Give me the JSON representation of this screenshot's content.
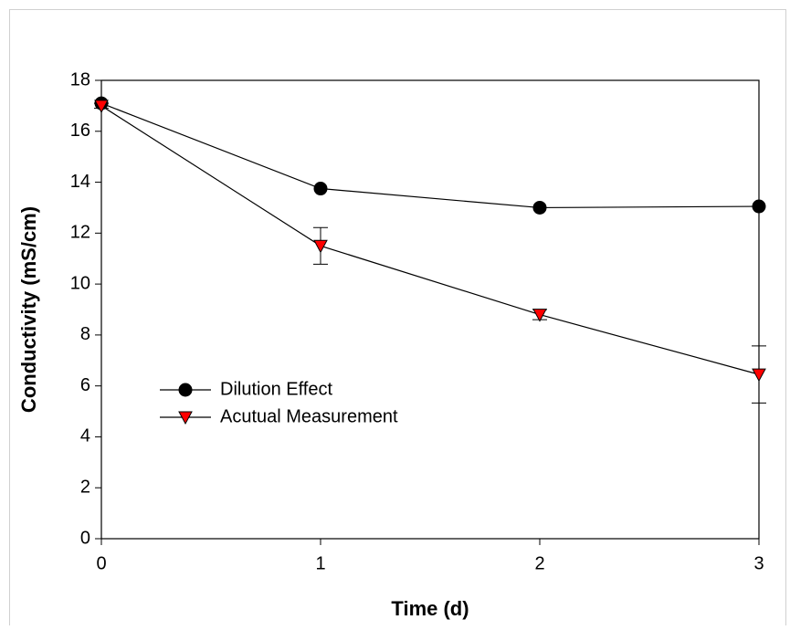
{
  "chart_data": {
    "type": "line",
    "x_label": "Time (d)",
    "y_label": "Conductivity (mS/cm)",
    "x": [
      0,
      1,
      2,
      3
    ],
    "series": [
      {
        "name": "Dilution Effect",
        "color": "#000000",
        "marker": "circle",
        "values": [
          17.1,
          13.75,
          13.0,
          13.05
        ]
      },
      {
        "name": "Acutual Measurement",
        "color": "#ff0000",
        "marker": "triangle-down",
        "values": [
          17.0,
          11.5,
          8.8,
          6.45
        ],
        "errors": [
          0.1,
          0.72,
          0.2,
          1.12
        ]
      }
    ],
    "xlim": [
      0,
      3
    ],
    "xticks": [
      0,
      1,
      2,
      3
    ],
    "ylim": [
      0,
      18
    ],
    "yticks": [
      0,
      2,
      4,
      6,
      8,
      10,
      12,
      14,
      16,
      18
    ],
    "grid": false,
    "legend_loc": "center left"
  }
}
